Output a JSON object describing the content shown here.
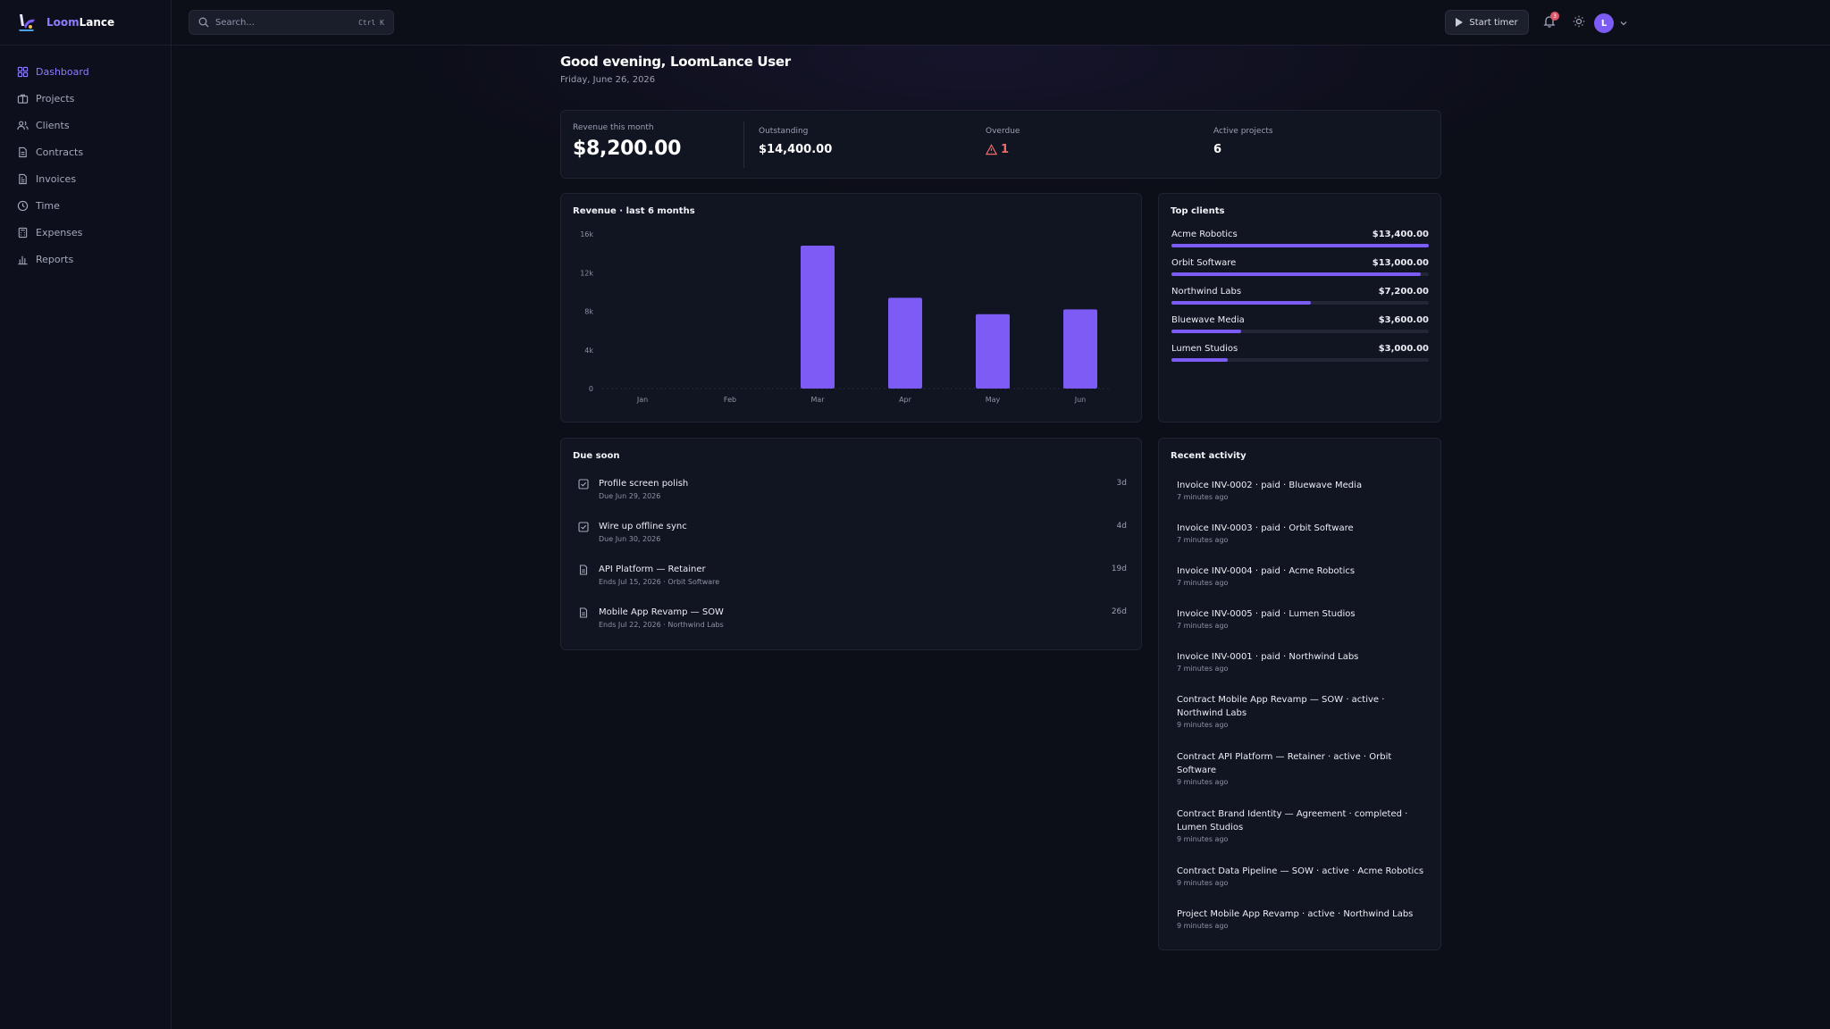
{
  "app": {
    "name_prefix": "Loom",
    "name_suffix": "Lance",
    "accent_color": "#7c5cf5"
  },
  "sidebar": {
    "items": [
      {
        "label": "Dashboard",
        "icon": "dashboard-icon",
        "active": true
      },
      {
        "label": "Projects",
        "icon": "briefcase-icon"
      },
      {
        "label": "Clients",
        "icon": "users-icon"
      },
      {
        "label": "Contracts",
        "icon": "file-text-icon"
      },
      {
        "label": "Invoices",
        "icon": "receipt-icon"
      },
      {
        "label": "Time",
        "icon": "clock-icon"
      },
      {
        "label": "Expenses",
        "icon": "calculator-icon"
      },
      {
        "label": "Reports",
        "icon": "bar-chart-icon"
      }
    ]
  },
  "topbar": {
    "search_placeholder": "Search...",
    "search_shortcut": "Ctrl K",
    "start_timer_label": "Start timer",
    "notification_count": "3",
    "avatar_initial": "L"
  },
  "header": {
    "greeting": "Good evening, LoomLance User",
    "date": "Friday, June 26, 2026"
  },
  "stats": {
    "revenue_label": "Revenue this month",
    "revenue_value": "$8,200.00",
    "outstanding_label": "Outstanding",
    "outstanding_value": "$14,400.00",
    "overdue_label": "Overdue",
    "overdue_value": "1",
    "active_label": "Active projects",
    "active_value": "6"
  },
  "revenue_chart": {
    "title": "Revenue · last 6 months"
  },
  "chart_data": {
    "type": "bar",
    "title": "Revenue · last 6 months",
    "categories": [
      "Jan",
      "Feb",
      "Mar",
      "Apr",
      "May",
      "Jun"
    ],
    "values": [
      0,
      0,
      14800,
      9400,
      7700,
      8200
    ],
    "y_ticks": [
      "0",
      "4k",
      "8k",
      "12k",
      "16k"
    ],
    "ylim": [
      0,
      16000
    ],
    "bar_color": "#7c5cf5",
    "grid": false
  },
  "top_clients": {
    "title": "Top clients",
    "items": [
      {
        "name": "Acme Robotics",
        "amount": "$13,400.00",
        "share": 1.0
      },
      {
        "name": "Orbit Software",
        "amount": "$13,000.00",
        "share": 0.97
      },
      {
        "name": "Northwind Labs",
        "amount": "$7,200.00",
        "share": 0.54
      },
      {
        "name": "Bluewave Media",
        "amount": "$3,600.00",
        "share": 0.27
      },
      {
        "name": "Lumen Studios",
        "amount": "$3,000.00",
        "share": 0.22
      }
    ]
  },
  "due_soon": {
    "title": "Due soon",
    "items": [
      {
        "title": "Profile screen polish",
        "sub": "Due Jun 29, 2026",
        "days": "3d",
        "icon": "checkbox-icon"
      },
      {
        "title": "Wire up offline sync",
        "sub": "Due Jun 30, 2026",
        "days": "4d",
        "icon": "checkbox-icon"
      },
      {
        "title": "API Platform — Retainer",
        "sub": "Ends Jul 15, 2026 · Orbit Software",
        "days": "19d",
        "icon": "document-icon"
      },
      {
        "title": "Mobile App Revamp — SOW",
        "sub": "Ends Jul 22, 2026 · Northwind Labs",
        "days": "26d",
        "icon": "document-icon"
      }
    ]
  },
  "recent_activity": {
    "title": "Recent activity",
    "items": [
      {
        "line1": "Invoice INV-0002 · paid · Bluewave Media",
        "line2": "",
        "time": "7 minutes ago"
      },
      {
        "line1": "Invoice INV-0003 · paid · Orbit Software",
        "line2": "",
        "time": "7 minutes ago"
      },
      {
        "line1": "Invoice INV-0004 · paid · Acme Robotics",
        "line2": "",
        "time": "7 minutes ago"
      },
      {
        "line1": "Invoice INV-0005 · paid · Lumen Studios",
        "line2": "",
        "time": "7 minutes ago"
      },
      {
        "line1": "Invoice INV-0001 · paid · Northwind Labs",
        "line2": "",
        "time": "7 minutes ago"
      },
      {
        "line1": "Contract Mobile App Revamp — SOW · active ·",
        "line2": "Northwind Labs",
        "time": "9 minutes ago"
      },
      {
        "line1": "Contract API Platform — Retainer · active · Orbit",
        "line2": "Software",
        "time": "9 minutes ago"
      },
      {
        "line1": "Contract Brand Identity — Agreement · completed ·",
        "line2": "Lumen Studios",
        "time": "9 minutes ago"
      },
      {
        "line1": "Contract Data Pipeline — SOW · active · Acme Robotics",
        "line2": "",
        "time": "9 minutes ago"
      },
      {
        "line1": "Project Mobile App Revamp · active · Northwind Labs",
        "line2": "",
        "time": "9 minutes ago"
      }
    ]
  }
}
